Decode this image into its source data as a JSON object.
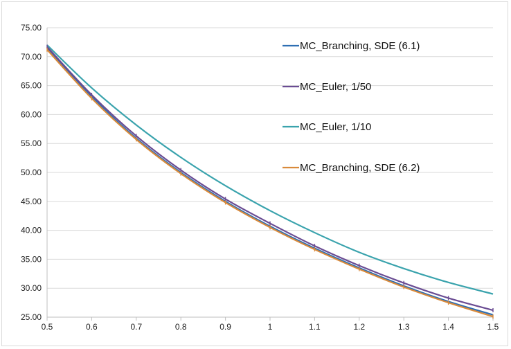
{
  "chart_data": {
    "type": "line",
    "title": "",
    "xlabel": "",
    "ylabel": "",
    "x": [
      0.5,
      0.6,
      0.7,
      0.8,
      0.9,
      1.0,
      1.1,
      1.2,
      1.3,
      1.4,
      1.5
    ],
    "x_tick_labels": [
      "0.5",
      "0.6",
      "0.7",
      "0.8",
      "0.9",
      "1",
      "1.1",
      "1.2",
      "1.3",
      "1.4",
      "1.5"
    ],
    "y_tick_labels": [
      "25.00",
      "30.00",
      "35.00",
      "40.00",
      "45.00",
      "50.00",
      "55.00",
      "60.00",
      "65.00",
      "70.00",
      "75.00"
    ],
    "xlim": [
      0.5,
      1.5
    ],
    "ylim": [
      25,
      75
    ],
    "grid": "horizontal",
    "legend_placement": "right",
    "series": [
      {
        "name": "MC_Branching, SDE (6.1)",
        "color": "#2e6fb3",
        "markers": false,
        "values": [
          71.5,
          63.1,
          55.9,
          50.0,
          45.0,
          40.7,
          36.9,
          33.5,
          30.4,
          27.7,
          25.4
        ]
      },
      {
        "name": "MC_Euler, 1/50",
        "color": "#6a4c93",
        "markers": true,
        "values": [
          71.7,
          63.4,
          56.3,
          50.4,
          45.4,
          41.2,
          37.3,
          33.9,
          30.9,
          28.3,
          26.2
        ]
      },
      {
        "name": "MC_Euler, 1/10",
        "color": "#3aa3ad",
        "markers": false,
        "values": [
          72.0,
          64.6,
          58.2,
          52.6,
          47.7,
          43.4,
          39.6,
          36.2,
          33.4,
          31.0,
          29.0
        ]
      },
      {
        "name": "MC_Branching, SDE (6.2)",
        "color": "#d98a3b",
        "markers": true,
        "values": [
          71.2,
          62.8,
          55.7,
          49.8,
          44.8,
          40.5,
          36.7,
          33.3,
          30.2,
          27.5,
          25.1
        ]
      }
    ]
  }
}
